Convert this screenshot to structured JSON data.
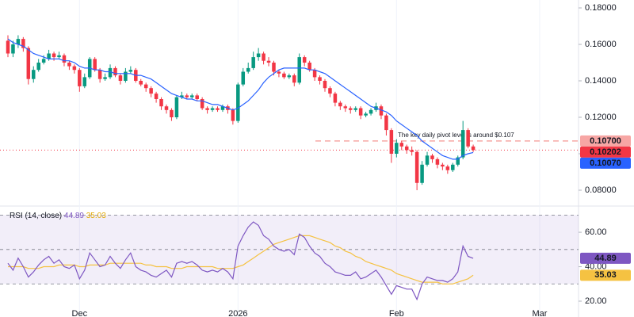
{
  "chart_data": [
    {
      "type": "candlestick",
      "open": [
        0.162,
        0.155,
        0.16,
        0.163,
        0.158,
        0.141,
        0.146,
        0.15,
        0.152,
        0.155,
        0.153,
        0.154,
        0.15,
        0.148,
        0.146,
        0.137,
        0.142,
        0.152,
        0.146,
        0.141,
        0.142,
        0.147,
        0.143,
        0.14,
        0.145,
        0.146,
        0.14,
        0.138,
        0.136,
        0.133,
        0.13,
        0.126,
        0.124,
        0.12,
        0.131,
        0.132,
        0.131,
        0.132,
        0.13,
        0.125,
        0.124,
        0.125,
        0.124,
        0.126,
        0.124,
        0.118,
        0.138,
        0.145,
        0.147,
        0.153,
        0.155,
        0.151,
        0.15,
        0.145,
        0.144,
        0.142,
        0.143,
        0.139,
        0.153,
        0.15,
        0.146,
        0.142,
        0.14,
        0.136,
        0.133,
        0.128,
        0.126,
        0.125,
        0.124,
        0.125,
        0.121,
        0.122,
        0.124,
        0.126,
        0.121,
        0.113,
        0.1,
        0.106,
        0.104,
        0.102,
        0.101,
        0.084,
        0.094,
        0.099,
        0.097,
        0.094,
        0.093,
        0.091,
        0.094,
        0.098,
        0.113,
        0.104
      ],
      "high": [
        0.165,
        0.162,
        0.165,
        0.164,
        0.159,
        0.148,
        0.152,
        0.154,
        0.157,
        0.156,
        0.156,
        0.155,
        0.151,
        0.149,
        0.147,
        0.144,
        0.153,
        0.153,
        0.147,
        0.144,
        0.149,
        0.148,
        0.144,
        0.147,
        0.148,
        0.147,
        0.141,
        0.139,
        0.137,
        0.134,
        0.131,
        0.127,
        0.125,
        0.132,
        0.134,
        0.133,
        0.133,
        0.133,
        0.131,
        0.126,
        0.126,
        0.126,
        0.127,
        0.127,
        0.125,
        0.139,
        0.147,
        0.15,
        0.156,
        0.158,
        0.156,
        0.153,
        0.151,
        0.146,
        0.145,
        0.144,
        0.144,
        0.155,
        0.154,
        0.151,
        0.147,
        0.143,
        0.141,
        0.137,
        0.134,
        0.129,
        0.127,
        0.126,
        0.126,
        0.126,
        0.123,
        0.125,
        0.128,
        0.127,
        0.122,
        0.114,
        0.108,
        0.107,
        0.105,
        0.104,
        0.102,
        0.096,
        0.101,
        0.1,
        0.098,
        0.095,
        0.094,
        0.095,
        0.099,
        0.118,
        0.114,
        0.105
      ],
      "low": [
        0.153,
        0.153,
        0.158,
        0.156,
        0.138,
        0.139,
        0.145,
        0.149,
        0.151,
        0.151,
        0.152,
        0.148,
        0.146,
        0.144,
        0.134,
        0.136,
        0.141,
        0.145,
        0.139,
        0.14,
        0.141,
        0.142,
        0.138,
        0.139,
        0.144,
        0.139,
        0.137,
        0.134,
        0.131,
        0.128,
        0.124,
        0.122,
        0.118,
        0.119,
        0.13,
        0.13,
        0.13,
        0.129,
        0.124,
        0.122,
        0.123,
        0.123,
        0.123,
        0.122,
        0.116,
        0.117,
        0.137,
        0.144,
        0.146,
        0.151,
        0.149,
        0.148,
        0.143,
        0.142,
        0.141,
        0.141,
        0.137,
        0.138,
        0.148,
        0.145,
        0.14,
        0.138,
        0.134,
        0.131,
        0.126,
        0.124,
        0.123,
        0.122,
        0.123,
        0.119,
        0.12,
        0.121,
        0.123,
        0.119,
        0.11,
        0.095,
        0.098,
        0.102,
        0.1,
        0.099,
        0.08,
        0.083,
        0.093,
        0.095,
        0.092,
        0.091,
        0.089,
        0.09,
        0.093,
        0.097,
        0.103,
        0.101
      ],
      "close": [
        0.155,
        0.16,
        0.163,
        0.158,
        0.141,
        0.146,
        0.15,
        0.152,
        0.155,
        0.153,
        0.154,
        0.15,
        0.148,
        0.146,
        0.137,
        0.142,
        0.152,
        0.146,
        0.141,
        0.142,
        0.147,
        0.143,
        0.14,
        0.145,
        0.146,
        0.14,
        0.138,
        0.136,
        0.133,
        0.13,
        0.126,
        0.124,
        0.12,
        0.131,
        0.132,
        0.131,
        0.132,
        0.13,
        0.125,
        0.124,
        0.125,
        0.124,
        0.126,
        0.124,
        0.118,
        0.138,
        0.145,
        0.147,
        0.153,
        0.155,
        0.151,
        0.15,
        0.145,
        0.144,
        0.142,
        0.143,
        0.139,
        0.153,
        0.15,
        0.146,
        0.142,
        0.14,
        0.136,
        0.133,
        0.128,
        0.126,
        0.125,
        0.124,
        0.125,
        0.121,
        0.122,
        0.124,
        0.126,
        0.121,
        0.113,
        0.1,
        0.106,
        0.104,
        0.102,
        0.101,
        0.084,
        0.094,
        0.099,
        0.097,
        0.094,
        0.093,
        0.091,
        0.094,
        0.098,
        0.113,
        0.104,
        0.10202
      ],
      "up_color": "#089981",
      "down_color": "#f23645",
      "overlays": [
        {
          "color": "#2962ff",
          "values": [
            0.163,
            0.161,
            0.16,
            0.159,
            0.157,
            0.155,
            0.154,
            0.153,
            0.152,
            0.152,
            0.152,
            0.151,
            0.151,
            0.15,
            0.148,
            0.147,
            0.147,
            0.146,
            0.146,
            0.145,
            0.145,
            0.144,
            0.144,
            0.144,
            0.144,
            0.143,
            0.143,
            0.142,
            0.141,
            0.139,
            0.137,
            0.135,
            0.133,
            0.132,
            0.131,
            0.13,
            0.13,
            0.129,
            0.129,
            0.128,
            0.127,
            0.127,
            0.126,
            0.125,
            0.124,
            0.125,
            0.127,
            0.129,
            0.132,
            0.135,
            0.139,
            0.142,
            0.144,
            0.146,
            0.147,
            0.147,
            0.147,
            0.147,
            0.147,
            0.146,
            0.146,
            0.145,
            0.144,
            0.142,
            0.14,
            0.138,
            0.136,
            0.134,
            0.132,
            0.13,
            0.128,
            0.126,
            0.125,
            0.124,
            0.123,
            0.121,
            0.118,
            0.116,
            0.114,
            0.112,
            0.11,
            0.107,
            0.105,
            0.103,
            0.101,
            0.099,
            0.098,
            0.097,
            0.097,
            0.099,
            0.1,
            0.1007
          ]
        }
      ],
      "ylim": [
        0.07217,
        0.18435
      ],
      "yticks": [
        {
          "value": 0.08,
          "label": "0.08000"
        },
        {
          "value": 0.1,
          "label": "0.10000"
        },
        {
          "value": 0.12,
          "label": "0.12000"
        },
        {
          "value": 0.14,
          "label": "0.14000"
        },
        {
          "value": 0.16,
          "label": "0.16000"
        },
        {
          "value": 0.18,
          "label": "0.18000"
        }
      ],
      "pivot": {
        "value": 0.107,
        "label": "0.10700",
        "text": "The key daily pivot level is around $0.107",
        "color": "#f7a6a4"
      },
      "price_labels": [
        {
          "value": 0.10202,
          "label": "0.10202",
          "color": "#f23645"
        },
        {
          "value": 0.1007,
          "label": "0.10070",
          "color": "#2962ff"
        }
      ]
    },
    {
      "type": "line",
      "title": "RSI (14, close)",
      "series": [
        {
          "color": "#7e57c2",
          "last_label": "44.89",
          "values": [
            42,
            38,
            45,
            40,
            34,
            37,
            41,
            44,
            46,
            42,
            44,
            40,
            39,
            41,
            33,
            38,
            48,
            44,
            40,
            41,
            46,
            42,
            39,
            44,
            48,
            40,
            38,
            37,
            35,
            34,
            36,
            38,
            34,
            42,
            43,
            42,
            43,
            41,
            38,
            37,
            38,
            37,
            39,
            37,
            33,
            52,
            58,
            63,
            66,
            64,
            58,
            56,
            52,
            50,
            49,
            50,
            47,
            59,
            57,
            52,
            48,
            46,
            42,
            40,
            37,
            36,
            35,
            35,
            37,
            33,
            34,
            36,
            38,
            34,
            29,
            24,
            29,
            28,
            27,
            27,
            21,
            30,
            34,
            33,
            32,
            32,
            31,
            33,
            37,
            52,
            46,
            44.89
          ]
        },
        {
          "color": "#f5c242",
          "last_label": "35.03",
          "values": [
            40,
            40,
            40,
            40,
            39,
            39,
            39,
            40,
            40,
            40,
            41,
            41,
            41,
            41,
            40,
            40,
            41,
            41,
            41,
            41,
            42,
            42,
            42,
            42,
            42,
            42,
            42,
            41,
            41,
            40,
            40,
            40,
            39,
            39,
            39,
            40,
            40,
            40,
            40,
            40,
            40,
            39,
            39,
            39,
            39,
            40,
            41,
            43,
            45,
            47,
            49,
            51,
            53,
            54,
            55,
            56,
            57,
            58,
            58,
            58,
            57,
            56,
            55,
            54,
            52,
            51,
            49,
            48,
            46,
            45,
            43,
            42,
            41,
            40,
            39,
            38,
            36,
            35,
            34,
            33,
            32,
            31,
            31,
            31,
            31,
            30,
            30,
            30,
            31,
            32,
            33,
            35.03
          ]
        }
      ],
      "levels": [
        70,
        50,
        30
      ],
      "ylim": [
        10.8,
        74.3
      ],
      "yticks": [
        {
          "value": 20,
          "label": "20.00"
        },
        {
          "value": 40,
          "label": "40.00"
        },
        {
          "value": 60,
          "label": "60.00"
        }
      ],
      "xlim": [
        -1.55,
        111.6
      ],
      "xticks": [
        {
          "value": 14,
          "label": "Dec"
        },
        {
          "value": 45,
          "label": "2026"
        },
        {
          "value": 76,
          "label": "Feb"
        },
        {
          "value": 104,
          "label": "Mar"
        }
      ]
    }
  ]
}
